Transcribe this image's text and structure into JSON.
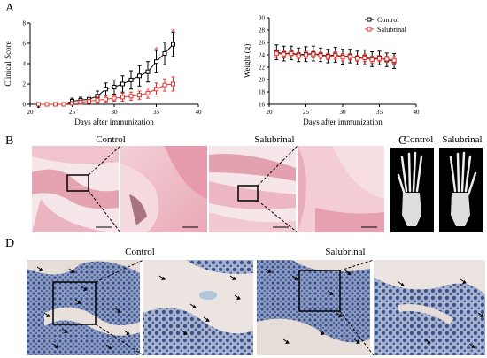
{
  "panel_labels": {
    "a": "A",
    "b": "B",
    "c": "C",
    "d": "D"
  },
  "legend": {
    "control": "Control",
    "salubrinal": "Salubrinal"
  },
  "colors": {
    "control": "#000000",
    "salubrinal": "#e8322d",
    "he_stain": "#e7a3b0",
    "alcian_blue": "#6a8fb8"
  },
  "sections": {
    "b_control_title": "Control",
    "b_salubrinal_title": "Salubrinal",
    "c_control_title": "Control",
    "c_salubrinal_title": "Salubrinal",
    "d_control_title": "Control",
    "d_salubrinal_title": "Salubrinal"
  },
  "chart_data": [
    {
      "type": "line",
      "xlabel": "Days after immunization",
      "ylabel": "Clinical Score",
      "xlim": [
        20,
        40
      ],
      "ylim": [
        0,
        8
      ],
      "xticks": [
        "20",
        "25",
        "30",
        "35",
        "40"
      ],
      "yticks": [
        "0",
        "2",
        "4",
        "6",
        "8"
      ],
      "x": [
        21,
        22,
        23,
        24,
        25,
        26,
        27,
        28,
        29,
        30,
        31,
        32,
        33,
        34,
        35,
        36,
        37
      ],
      "series": [
        {
          "name": "Control",
          "marker": "square-open",
          "values": [
            0,
            0,
            0,
            0,
            0.3,
            0.4,
            0.5,
            0.8,
            1.5,
            1.7,
            2.0,
            2.4,
            2.8,
            3.2,
            4.2,
            5.0,
            5.9
          ],
          "errors": [
            0,
            0,
            0,
            0,
            0.3,
            0.3,
            0.4,
            0.5,
            0.6,
            0.7,
            0.8,
            0.9,
            1.0,
            1.0,
            1.1,
            1.1,
            1.2
          ]
        },
        {
          "name": "Salubrinal",
          "marker": "square-open",
          "values": [
            0,
            0,
            0,
            0,
            0.1,
            0.2,
            0.3,
            0.4,
            0.5,
            0.6,
            0.7,
            0.8,
            0.9,
            1.1,
            1.5,
            1.9,
            2.0
          ],
          "errors": [
            0,
            0,
            0,
            0,
            0.1,
            0.2,
            0.2,
            0.3,
            0.3,
            0.3,
            0.4,
            0.4,
            0.4,
            0.5,
            0.6,
            0.6,
            0.7
          ]
        }
      ],
      "annotations": [
        {
          "text": "*",
          "x": 35,
          "y": 5.3
        },
        {
          "text": "*",
          "x": 37,
          "y": 7.1
        },
        {
          "text": "▲",
          "x": 21,
          "y": 0
        }
      ]
    },
    {
      "type": "line",
      "xlabel": "Days after immunization",
      "ylabel": "Weight (g)",
      "xlim": [
        20,
        40
      ],
      "ylim": [
        16,
        30
      ],
      "xticks": [
        "20",
        "25",
        "30",
        "35",
        "40"
      ],
      "yticks": [
        "16",
        "18",
        "20",
        "22",
        "24",
        "26",
        "28",
        "30"
      ],
      "x": [
        21,
        22,
        23,
        24,
        25,
        26,
        27,
        28,
        29,
        30,
        31,
        32,
        33,
        34,
        35,
        36,
        37
      ],
      "series": [
        {
          "name": "Control",
          "marker": "square-open",
          "values": [
            24.4,
            24.2,
            24.3,
            24.0,
            24.1,
            24.2,
            24.0,
            23.8,
            24.0,
            23.7,
            23.8,
            23.5,
            23.6,
            23.3,
            23.5,
            23.2,
            23.0
          ],
          "errors": [
            1.2,
            1.2,
            1.1,
            1.1,
            1.2,
            1.2,
            1.1,
            1.1,
            1.2,
            1.2,
            1.1,
            1.1,
            1.2,
            1.2,
            1.1,
            1.1,
            1.2
          ]
        },
        {
          "name": "Salubrinal",
          "marker": "square-open",
          "values": [
            24.2,
            24.1,
            24.2,
            23.9,
            24.0,
            24.1,
            23.9,
            23.7,
            23.9,
            23.6,
            23.7,
            23.4,
            23.5,
            23.2,
            23.4,
            23.3,
            23.1
          ],
          "errors": [
            0.6,
            0.6,
            0.5,
            0.5,
            0.6,
            0.6,
            0.5,
            0.5,
            0.6,
            0.6,
            0.5,
            0.5,
            0.6,
            0.6,
            0.5,
            0.5,
            0.6
          ]
        }
      ]
    }
  ]
}
